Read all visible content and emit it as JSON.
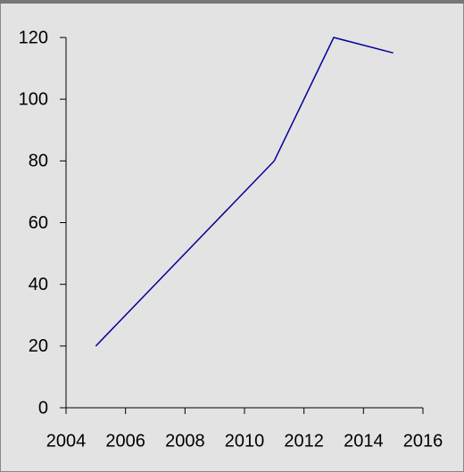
{
  "chart_data": {
    "type": "line",
    "x": [
      2005,
      2011,
      2013,
      2015
    ],
    "values": [
      20,
      80,
      120,
      115
    ],
    "color": "#000099",
    "xlim": [
      2004,
      2016
    ],
    "xticks": [
      2004,
      2006,
      2008,
      2010,
      2012,
      2014,
      2016
    ],
    "ylim": [
      0,
      120
    ],
    "yticks": [
      0,
      20,
      40,
      60,
      80,
      100,
      120
    ],
    "grid": false
  }
}
